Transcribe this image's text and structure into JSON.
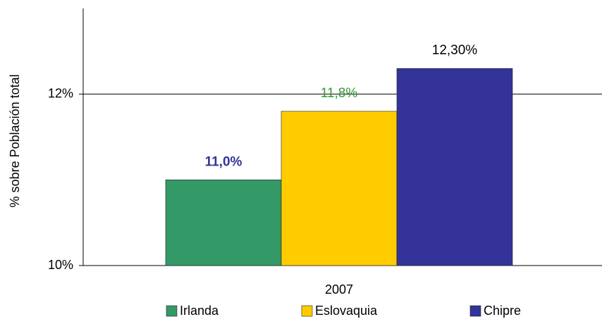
{
  "chart_data": {
    "type": "bar",
    "y_axis_label": "% sobre Población total",
    "categories": [
      "2007"
    ],
    "series": [
      {
        "name": "Irlanda",
        "color": "#339966",
        "values": [
          11.0
        ],
        "value_labels": [
          "11,0%"
        ],
        "label_color": "#333399",
        "label_bold": true
      },
      {
        "name": "Eslovaquia",
        "color": "#ffcc00",
        "values": [
          11.8
        ],
        "value_labels": [
          "11,8%"
        ],
        "label_color": "#339933",
        "label_bold": false
      },
      {
        "name": "Chipre",
        "color": "#333399",
        "values": [
          12.3
        ],
        "value_labels": [
          "12,30%"
        ],
        "label_color": "#000000",
        "label_bold": false
      }
    ],
    "ylim": [
      10,
      13
    ],
    "yticks": [
      {
        "value": 10,
        "label": "10%"
      },
      {
        "value": 12,
        "label": "12%"
      }
    ],
    "grid": true
  }
}
